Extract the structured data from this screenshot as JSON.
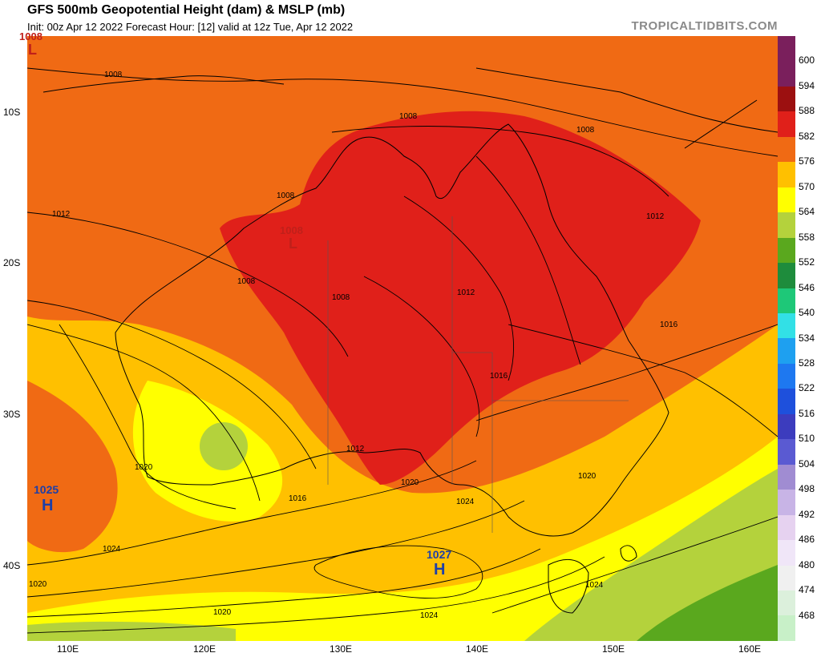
{
  "header": {
    "title": "GFS 500mb Geopotential Height (dam) & MSLP (mb)",
    "subtitle": "Init: 00z Apr 12 2022   Forecast Hour: [12]   valid at 12z Tue, Apr 12 2022",
    "credit": "TROPICALTIDBITS.COM"
  },
  "map": {
    "lon_labels": [
      "110E",
      "120E",
      "130E",
      "140E",
      "150E",
      "160E"
    ],
    "lat_labels": [
      "10S",
      "20S",
      "30S",
      "40S"
    ],
    "pressure_centers": [
      {
        "type": "L",
        "value": "1008",
        "color": "#c0201a"
      },
      {
        "type": "L",
        "value": "1008",
        "color": "#c0201a"
      },
      {
        "type": "H",
        "value": "1025",
        "color": "#1e3fa8"
      },
      {
        "type": "H",
        "value": "1027",
        "color": "#1e3fa8"
      }
    ],
    "isobar_labels": [
      "1008",
      "1008",
      "1008",
      "1008",
      "1008",
      "1008",
      "1012",
      "1012",
      "1012",
      "1012",
      "1016",
      "1016",
      "1016",
      "1020",
      "1020",
      "1020",
      "1020",
      "1020",
      "1024",
      "1024",
      "1024",
      "1024"
    ]
  },
  "colorbar": {
    "labels": [
      "600",
      "594",
      "588",
      "582",
      "576",
      "570",
      "564",
      "558",
      "552",
      "546",
      "540",
      "534",
      "528",
      "522",
      "516",
      "510",
      "504",
      "498",
      "492",
      "486",
      "480",
      "474",
      "468"
    ],
    "colors": [
      "#7a1f5c",
      "#9c1010",
      "#e0201a",
      "#f06a14",
      "#ffc000",
      "#ffff00",
      "#b4d23c",
      "#5aa81e",
      "#1e8c3c",
      "#1ec878",
      "#32e0e6",
      "#1ea0f0",
      "#1e78f0",
      "#1e50dc",
      "#3c3cbe",
      "#5a5ad2",
      "#a08cd2",
      "#c8b4e6",
      "#e6d2f0",
      "#f0e6f8",
      "#f0f0f0",
      "#dcf0dc",
      "#c8f0c8"
    ]
  }
}
